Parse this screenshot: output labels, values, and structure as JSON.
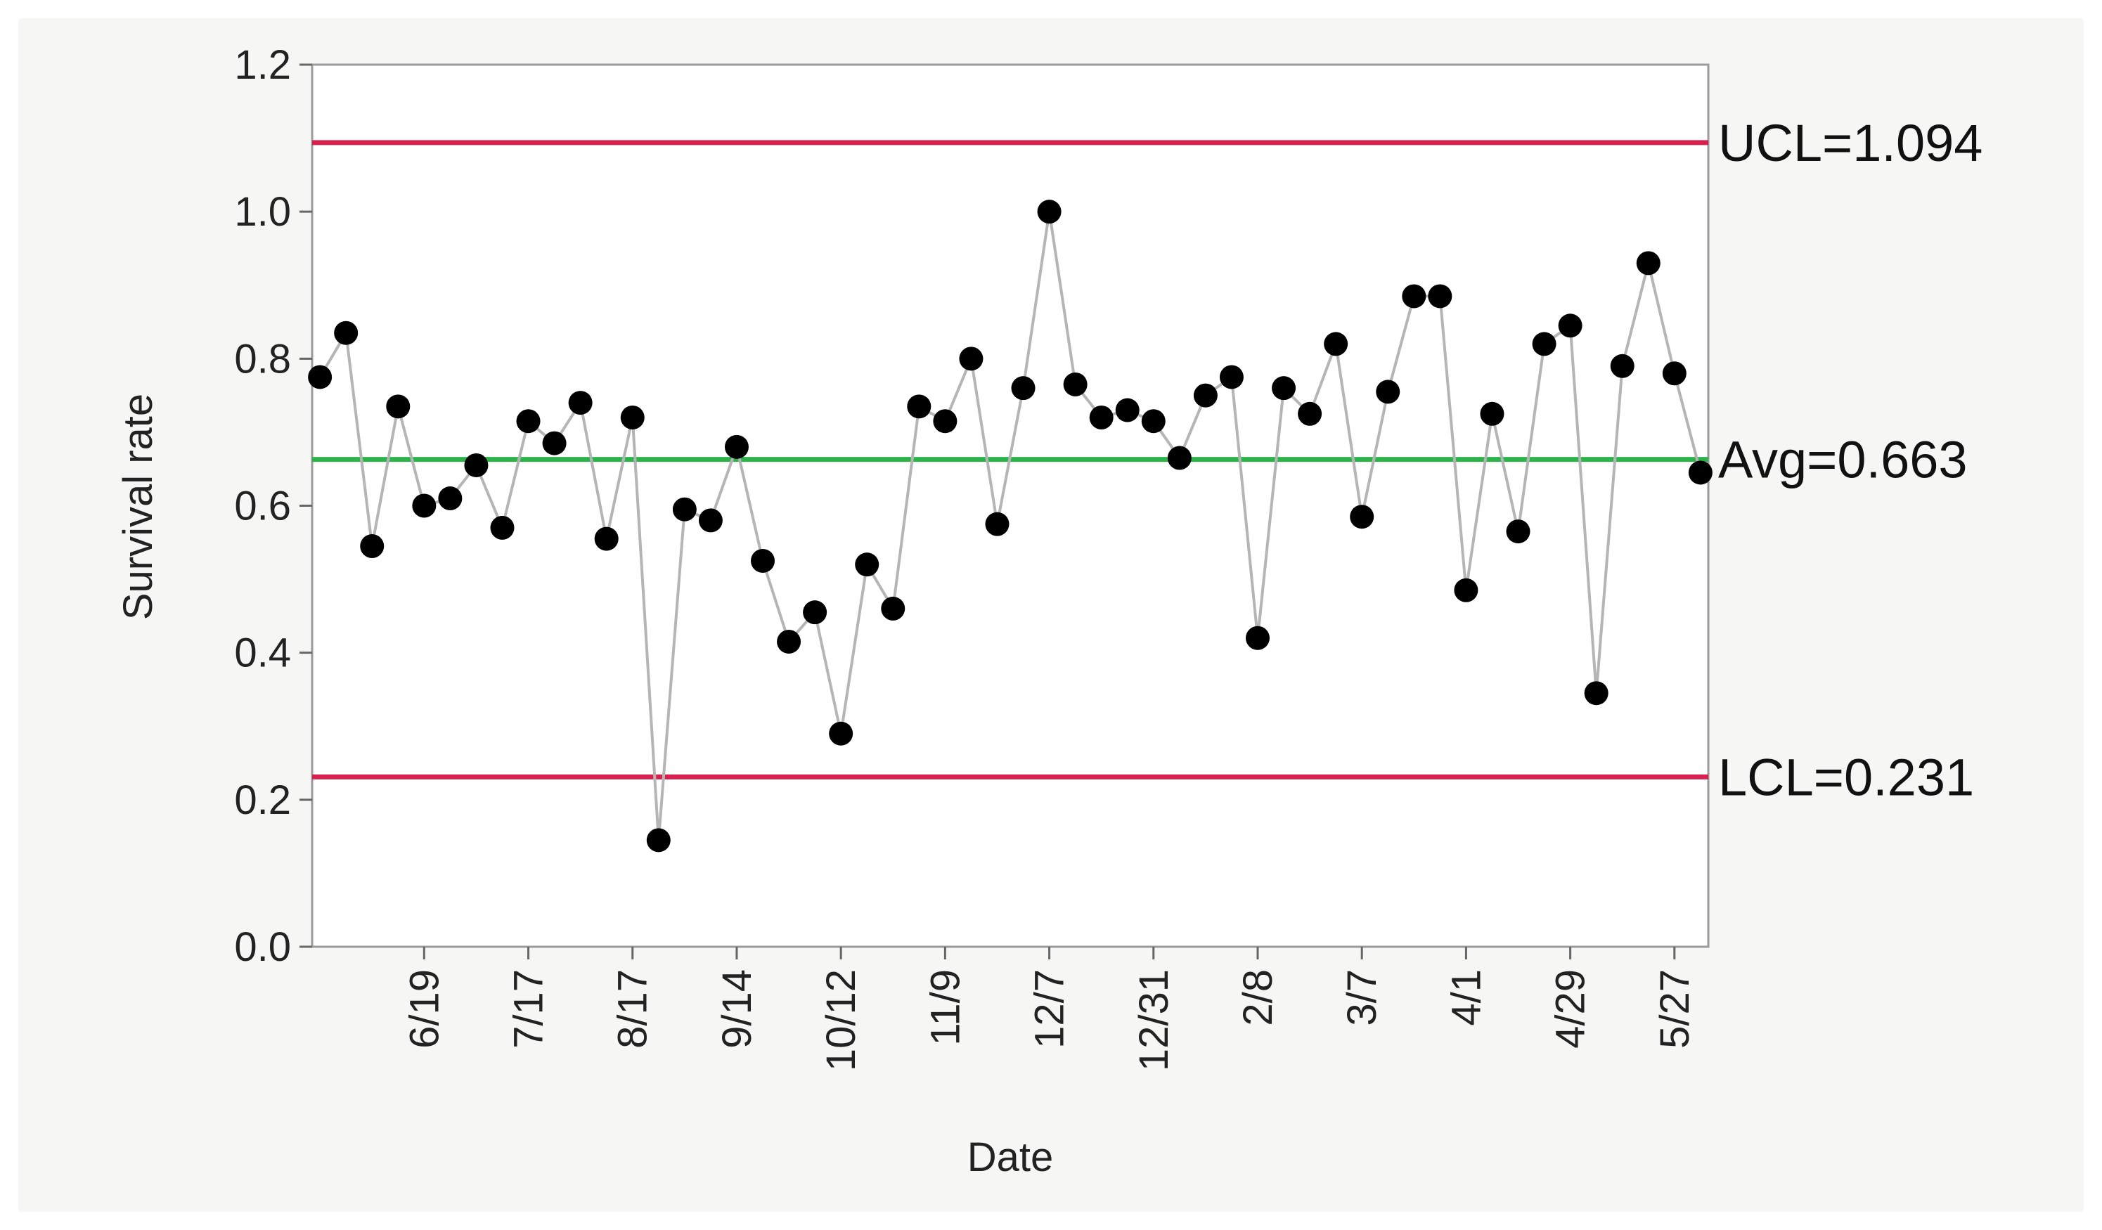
{
  "chart_data": {
    "type": "line",
    "chart_kind": "control chart",
    "xlabel": "Date",
    "ylabel": "Survival rate",
    "ylim": [
      0,
      1.2
    ],
    "y_ticks": [
      "0.0",
      "0.2",
      "0.4",
      "0.6",
      "0.8",
      "1.0",
      "1.2"
    ],
    "x_tick_labels": [
      "6/19",
      "7/17",
      "8/17",
      "9/14",
      "10/12",
      "11/9",
      "12/7",
      "12/31",
      "2/8",
      "3/7",
      "4/1",
      "4/29",
      "5/27"
    ],
    "x_tick_positions": [
      4,
      8,
      12,
      16,
      20,
      24,
      28,
      32,
      36,
      40,
      44,
      48,
      52
    ],
    "x_range": [
      -0.3,
      53.3
    ],
    "grid": false,
    "series": [
      {
        "x": [
          0,
          1,
          2,
          3,
          4,
          5,
          6,
          7,
          8,
          9,
          10,
          11,
          12,
          13,
          14,
          15,
          16,
          17,
          18,
          19,
          20,
          21,
          22,
          23,
          24,
          25,
          26,
          27,
          28,
          29,
          30,
          31,
          32,
          33,
          34,
          35,
          36,
          37,
          38,
          39,
          40,
          41,
          42,
          43,
          44,
          45,
          46,
          47,
          48,
          49,
          50,
          51,
          52,
          53
        ],
        "y": [
          0.775,
          0.835,
          0.545,
          0.735,
          0.6,
          0.61,
          0.655,
          0.57,
          0.715,
          0.685,
          0.74,
          0.555,
          0.72,
          0.145,
          0.595,
          0.58,
          0.68,
          0.525,
          0.415,
          0.455,
          0.29,
          0.52,
          0.46,
          0.735,
          0.715,
          0.8,
          0.575,
          0.76,
          1.0,
          0.765,
          0.72,
          0.73,
          0.715,
          0.665,
          0.75,
          0.775,
          0.42,
          0.76,
          0.725,
          0.82,
          0.585,
          0.755,
          0.885,
          0.885,
          0.485,
          0.725,
          0.565,
          0.82,
          0.845,
          0.345,
          0.79,
          0.93,
          0.78,
          0.645
        ]
      }
    ],
    "control_lines": [
      {
        "label": "UCL=1.094",
        "value": 1.094,
        "color": "#d6204e"
      },
      {
        "label": "Avg=0.663",
        "value": 0.663,
        "color": "#2db34a"
      },
      {
        "label": "LCL=0.231",
        "value": 0.231,
        "color": "#d6204e"
      }
    ],
    "colors": {
      "line": "#b5b5b5",
      "marker": "#000000",
      "frame": "#9a9a9a",
      "plot_background": "#ffffff"
    }
  }
}
